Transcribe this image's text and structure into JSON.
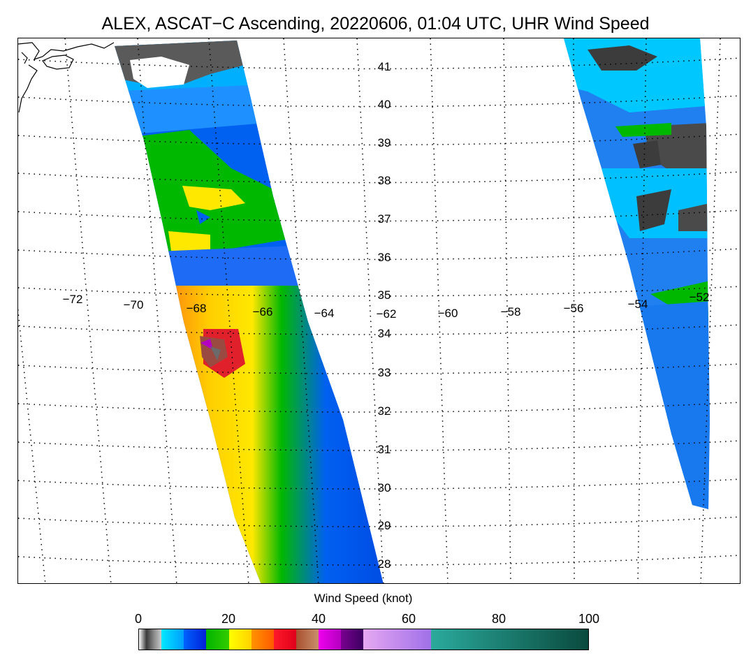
{
  "title": "ALEX, ASCAT−C Ascending, 20220606, 01:04 UTC, UHR Wind Speed",
  "map": {
    "latitude_labels": [
      "41",
      "40",
      "39",
      "38",
      "37",
      "36",
      "35",
      "34",
      "33",
      "32",
      "31",
      "30",
      "29",
      "28"
    ],
    "longitude_labels": [
      "−72",
      "−70",
      "−68",
      "−66",
      "−64",
      "−62",
      "−60",
      "−58",
      "−56",
      "−54",
      "−52"
    ],
    "land_color": "#000000",
    "no_data_color": "#ffffff",
    "grid_style": "dotted"
  },
  "colorbar": {
    "label": "Wind Speed (knot)",
    "ticks": [
      "0",
      "20",
      "40",
      "60",
      "80",
      "100"
    ],
    "min": 0,
    "max": 100,
    "segments": [
      {
        "from": 0,
        "to": 5,
        "colors": [
          "#ffffff",
          "#3a3a3a",
          "#8a8a8a",
          "#c9c9c9"
        ]
      },
      {
        "from": 5,
        "to": 10,
        "colors": [
          "#00e8ff",
          "#009dff"
        ]
      },
      {
        "from": 10,
        "to": 15,
        "colors": [
          "#0062ff",
          "#0020d8"
        ]
      },
      {
        "from": 15,
        "to": 20,
        "colors": [
          "#00b400",
          "#33cc00"
        ]
      },
      {
        "from": 20,
        "to": 25,
        "colors": [
          "#ffff00",
          "#ffd200"
        ]
      },
      {
        "from": 25,
        "to": 30,
        "colors": [
          "#ff9400",
          "#ff5a00"
        ]
      },
      {
        "from": 30,
        "to": 35,
        "colors": [
          "#ff1a2a",
          "#e0001a"
        ]
      },
      {
        "from": 35,
        "to": 40,
        "colors": [
          "#a85030",
          "#c9906a"
        ]
      },
      {
        "from": 40,
        "to": 45,
        "colors": [
          "#ee00ee",
          "#b400c0"
        ]
      },
      {
        "from": 45,
        "to": 50,
        "colors": [
          "#7a0090",
          "#3c0060"
        ]
      },
      {
        "from": 50,
        "to": 65,
        "colors": [
          "#e6a8f2",
          "#a070e8"
        ]
      },
      {
        "from": 65,
        "to": 100,
        "colors": [
          "#2aaa9c",
          "#0a4a3e"
        ]
      }
    ]
  },
  "wind_palette": {
    "calm": "#3c3c3c",
    "light": "#00d0ff",
    "moderate": "#0060f0",
    "fresh": "#00b800",
    "strong": "#ffe800",
    "gale": "#ff9a00",
    "storm": "#ff2a30",
    "violent": "#9a4a40"
  }
}
